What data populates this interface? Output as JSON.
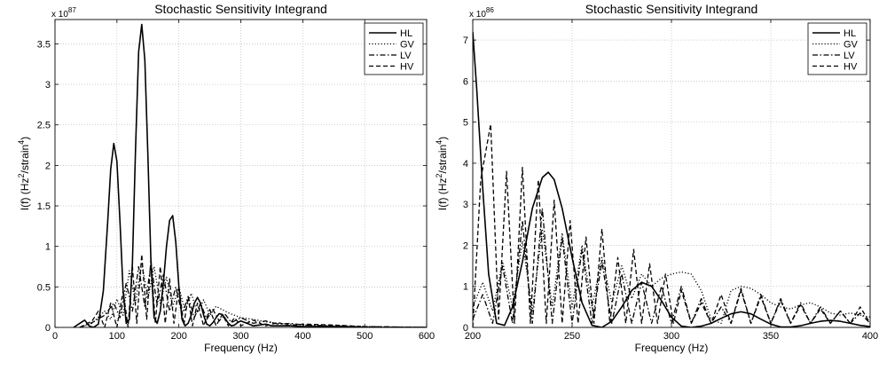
{
  "chart_data": [
    {
      "type": "line",
      "title": "Stochastic Sensitivity Integrand",
      "xlabel": "Frequency (Hz)",
      "ylabel_main": "I(f) (Hz",
      "ylabel_sup1": "2",
      "ylabel_mid": "/strain",
      "ylabel_sup2": "4",
      "ylabel_end": ")",
      "multiplier_base": "x 10",
      "multiplier_exp": "87",
      "xlim": [
        0,
        600
      ],
      "ylim": [
        0,
        3.8
      ],
      "xticks": [
        0,
        100,
        200,
        300,
        400,
        500,
        600
      ],
      "xtick_labels": [
        "0",
        "100",
        "200",
        "300",
        "400",
        "500",
        "600"
      ],
      "yticks": [
        0,
        0.5,
        1,
        1.5,
        2,
        2.5,
        3,
        3.5
      ],
      "ytick_labels": [
        "0",
        "0.5",
        "1",
        "1.5",
        "2",
        "2.5",
        "3",
        "3.5"
      ],
      "grid": true,
      "legend_position": "top-right",
      "series": [
        {
          "name": "HL",
          "style": "solid",
          "x": [
            30,
            40,
            48,
            55,
            62,
            70,
            78,
            85,
            90,
            95,
            100,
            105,
            110,
            115,
            120,
            125,
            130,
            135,
            140,
            145,
            150,
            155,
            160,
            165,
            170,
            175,
            180,
            185,
            190,
            195,
            200,
            205,
            210,
            215,
            220,
            225,
            230,
            235,
            240,
            245,
            250,
            255,
            260,
            265,
            270,
            275,
            280,
            285,
            290,
            295,
            300,
            310,
            320,
            330,
            340,
            350,
            360,
            380,
            400,
            450,
            500,
            600
          ],
          "y": [
            0,
            0.05,
            0.09,
            0.02,
            0.0,
            0.04,
            0.45,
            1.3,
            1.95,
            2.27,
            2.05,
            1.3,
            0.45,
            0.05,
            0.1,
            0.8,
            2.2,
            3.4,
            3.74,
            3.3,
            2.1,
            0.8,
            0.12,
            0.05,
            0.2,
            0.55,
            1.0,
            1.32,
            1.38,
            1.05,
            0.5,
            0.1,
            0.02,
            0.05,
            0.15,
            0.3,
            0.37,
            0.3,
            0.15,
            0.04,
            0.02,
            0.06,
            0.12,
            0.17,
            0.16,
            0.11,
            0.05,
            0.02,
            0.03,
            0.06,
            0.08,
            0.05,
            0.02,
            0.03,
            0.04,
            0.02,
            0.02,
            0.02,
            0.01,
            0.01,
            0.0,
            0.0
          ]
        },
        {
          "name": "GV",
          "style": "dotted",
          "x": [
            40,
            60,
            80,
            90,
            100,
            110,
            120,
            130,
            140,
            150,
            160,
            170,
            180,
            190,
            200,
            210,
            220,
            230,
            240,
            250,
            260,
            280,
            300,
            320,
            340,
            360,
            380,
            400,
            450,
            500,
            600
          ],
          "y": [
            0,
            0.05,
            0.2,
            0.1,
            0.35,
            0.15,
            0.7,
            0.3,
            0.8,
            0.35,
            0.75,
            0.3,
            0.62,
            0.25,
            0.5,
            0.2,
            0.42,
            0.18,
            0.34,
            0.15,
            0.26,
            0.18,
            0.12,
            0.1,
            0.07,
            0.05,
            0.04,
            0.03,
            0.02,
            0.01,
            0.0
          ]
        },
        {
          "name": "LV",
          "style": "dashdot",
          "x": [
            40,
            60,
            80,
            95,
            105,
            115,
            125,
            135,
            145,
            155,
            165,
            175,
            185,
            195,
            205,
            215,
            225,
            235,
            245,
            255,
            265,
            275,
            285,
            300,
            320,
            340,
            360,
            380,
            400,
            450,
            500,
            600
          ],
          "y": [
            0,
            0.06,
            0.15,
            0.3,
            0.12,
            0.55,
            0.2,
            0.75,
            0.25,
            0.78,
            0.28,
            0.65,
            0.2,
            0.5,
            0.16,
            0.38,
            0.12,
            0.3,
            0.1,
            0.22,
            0.08,
            0.16,
            0.06,
            0.12,
            0.05,
            0.08,
            0.04,
            0.05,
            0.03,
            0.02,
            0.01,
            0.0
          ]
        },
        {
          "name": "HV",
          "style": "dashed",
          "x": [
            40,
            60,
            70,
            80,
            90,
            100,
            110,
            118,
            125,
            132,
            140,
            148,
            155,
            162,
            170,
            178,
            185,
            192,
            200,
            208,
            215,
            222,
            230,
            240,
            250,
            260,
            270,
            280,
            290,
            300,
            320,
            340,
            360,
            380,
            400,
            450,
            500,
            600
          ],
          "y": [
            0,
            0.08,
            0.2,
            0.0,
            0.3,
            0.0,
            0.45,
            0.0,
            0.75,
            0.05,
            0.9,
            0.1,
            0.85,
            0.05,
            0.75,
            0.05,
            0.6,
            0.05,
            0.5,
            0.03,
            0.38,
            0.02,
            0.3,
            0.02,
            0.22,
            0.02,
            0.16,
            0.02,
            0.12,
            0.02,
            0.09,
            0.02,
            0.06,
            0.02,
            0.04,
            0.03,
            0.01,
            0.0
          ]
        }
      ]
    },
    {
      "type": "line",
      "title": "Stochastic Sensitivity Integrand",
      "xlabel": "Frequency (Hz)",
      "ylabel_main": "I(f) (Hz",
      "ylabel_sup1": "2",
      "ylabel_mid": "/strain",
      "ylabel_sup2": "4",
      "ylabel_end": ")",
      "multiplier_base": "x 10",
      "multiplier_exp": "86",
      "xlim": [
        200,
        400
      ],
      "ylim": [
        0,
        7.5
      ],
      "xticks": [
        200,
        250,
        300,
        350,
        400
      ],
      "xtick_labels": [
        "200",
        "250",
        "300",
        "350",
        "400"
      ],
      "yticks": [
        0,
        1,
        2,
        3,
        4,
        5,
        6,
        7
      ],
      "ytick_labels": [
        "0",
        "1",
        "2",
        "3",
        "4",
        "5",
        "6",
        "7"
      ],
      "grid": true,
      "legend_position": "top-right",
      "series": [
        {
          "name": "HL",
          "style": "solid",
          "x": [
            200,
            202,
            205,
            208,
            212,
            216,
            220,
            225,
            230,
            235,
            238,
            241,
            245,
            250,
            255,
            260,
            265,
            270,
            275,
            280,
            285,
            290,
            295,
            300,
            305,
            310,
            315,
            320,
            325,
            330,
            335,
            340,
            345,
            350,
            355,
            360,
            365,
            370,
            375,
            380,
            385,
            390,
            395,
            400
          ],
          "y": [
            7.2,
            5.8,
            3.4,
            1.3,
            0.1,
            0.05,
            0.5,
            1.6,
            2.9,
            3.65,
            3.78,
            3.6,
            2.9,
            1.7,
            0.6,
            0.05,
            0.0,
            0.15,
            0.5,
            0.9,
            1.1,
            1.0,
            0.65,
            0.25,
            0.03,
            0.0,
            0.03,
            0.1,
            0.22,
            0.33,
            0.38,
            0.33,
            0.2,
            0.08,
            0.01,
            0.01,
            0.04,
            0.1,
            0.15,
            0.17,
            0.15,
            0.1,
            0.05,
            0.02
          ]
        },
        {
          "name": "GV",
          "style": "dotted",
          "x": [
            200,
            205,
            210,
            215,
            220,
            225,
            230,
            235,
            240,
            245,
            250,
            255,
            260,
            265,
            270,
            275,
            280,
            285,
            290,
            295,
            300,
            305,
            310,
            315,
            320,
            325,
            330,
            335,
            340,
            345,
            350,
            355,
            360,
            365,
            370,
            375,
            380,
            385,
            390,
            395,
            400
          ],
          "y": [
            0.5,
            1.1,
            0.4,
            1.6,
            0.5,
            2.1,
            0.4,
            2.4,
            0.5,
            2.3,
            0.5,
            2.0,
            0.5,
            1.7,
            0.6,
            1.5,
            0.7,
            1.3,
            1.0,
            1.2,
            1.3,
            1.35,
            1.3,
            0.9,
            0.2,
            0.1,
            0.9,
            1.0,
            0.95,
            0.8,
            0.6,
            0.5,
            0.45,
            0.55,
            0.6,
            0.5,
            0.35,
            0.3,
            0.35,
            0.3,
            0.25
          ]
        },
        {
          "name": "LV",
          "style": "dashdot",
          "x": [
            200,
            205,
            210,
            215,
            220,
            225,
            230,
            235,
            240,
            245,
            250,
            255,
            260,
            265,
            270,
            275,
            280,
            285,
            290,
            295,
            300,
            305,
            310,
            315,
            320,
            325,
            330,
            335,
            340,
            345,
            350,
            355,
            360,
            365,
            370,
            375,
            380,
            385,
            390,
            395,
            400
          ],
          "y": [
            0.2,
            0.8,
            0.1,
            1.5,
            0.1,
            2.6,
            0.1,
            2.9,
            0.1,
            2.2,
            0.1,
            1.9,
            0.1,
            1.6,
            0.1,
            1.3,
            0.1,
            1.1,
            0.1,
            1.0,
            0.1,
            1.0,
            0.1,
            0.7,
            0.1,
            0.5,
            0.1,
            0.9,
            0.1,
            0.8,
            0.1,
            0.7,
            0.1,
            0.6,
            0.1,
            0.5,
            0.1,
            0.4,
            0.1,
            0.35,
            0.1
          ]
        },
        {
          "name": "HV",
          "style": "dashed",
          "x": [
            200,
            204,
            209,
            213,
            217,
            221,
            225,
            229,
            233,
            237,
            241,
            245,
            249,
            253,
            257,
            261,
            265,
            269,
            273,
            277,
            281,
            285,
            289,
            293,
            297,
            301,
            305,
            310,
            315,
            320,
            325,
            330,
            335,
            340,
            345,
            350,
            355,
            360,
            365,
            370,
            375,
            380,
            385,
            390,
            395,
            400
          ],
          "y": [
            0.0,
            3.6,
            4.95,
            0.2,
            3.8,
            0.1,
            3.9,
            0.1,
            3.6,
            0.1,
            3.1,
            0.1,
            2.6,
            0.1,
            2.2,
            0.1,
            2.4,
            0.1,
            1.7,
            0.1,
            1.9,
            0.1,
            1.55,
            0.1,
            1.3,
            0.1,
            0.9,
            0.1,
            0.6,
            0.1,
            0.8,
            0.1,
            0.95,
            0.1,
            0.75,
            0.1,
            0.65,
            0.1,
            0.55,
            0.1,
            0.45,
            0.1,
            0.4,
            0.1,
            0.5,
            0.1
          ]
        }
      ]
    }
  ]
}
